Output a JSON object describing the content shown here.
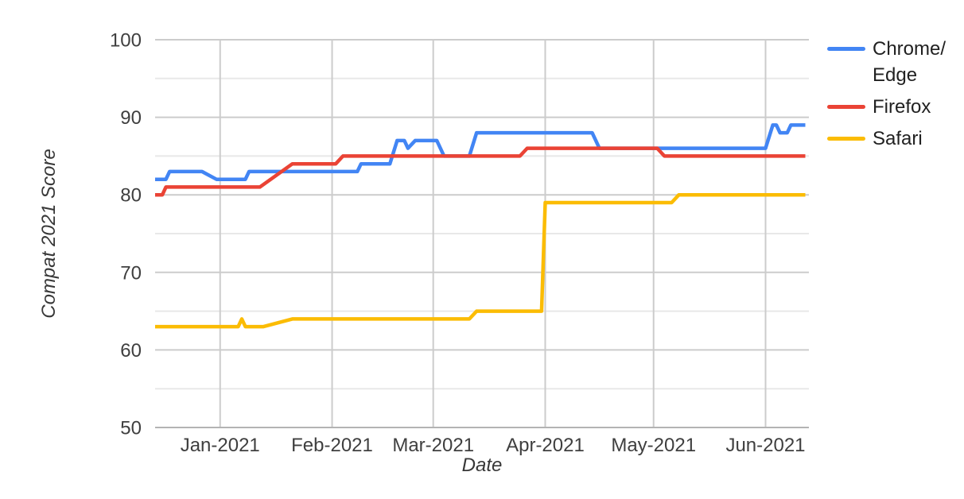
{
  "chart_data": {
    "type": "line",
    "title": "",
    "x_axis": {
      "label": "Date",
      "start": "2020-12-14",
      "end": "2021-06-13",
      "ticks": [
        {
          "date": "2021-01-01",
          "label": "Jan-2021"
        },
        {
          "date": "2021-02-01",
          "label": "Feb-2021"
        },
        {
          "date": "2021-03-01",
          "label": "Mar-2021"
        },
        {
          "date": "2021-04-01",
          "label": "Apr-2021"
        },
        {
          "date": "2021-05-01",
          "label": "May-2021"
        },
        {
          "date": "2021-06-01",
          "label": "Jun-2021"
        }
      ]
    },
    "y_axis": {
      "label": "Compat 2021 Score",
      "min": 50,
      "max": 100,
      "major_ticks": [
        50,
        60,
        70,
        80,
        90,
        100
      ],
      "minor_ticks": [
        55,
        65,
        75,
        85,
        95
      ]
    },
    "grid": true,
    "legend_position": "right",
    "style": {
      "background": "#ffffff",
      "major_grid_color": "#cccccc",
      "minor_grid_color": "#e8e8e8",
      "baseline_color": "#b3b3b3",
      "tick_label_color": "#3f3f3f",
      "axis_title_color": "#383838",
      "legend_text_color": "#212121",
      "line_width": 4.5
    },
    "series": [
      {
        "name": "Chrome/Edge",
        "legend_lines": [
          "Chrome/",
          "Edge"
        ],
        "color": "#4285F4",
        "points": [
          [
            "2020-12-14",
            82
          ],
          [
            "2020-12-17",
            82
          ],
          [
            "2020-12-18",
            83
          ],
          [
            "2020-12-27",
            83
          ],
          [
            "2020-12-31",
            82
          ],
          [
            "2021-01-08",
            82
          ],
          [
            "2021-01-09",
            83
          ],
          [
            "2021-02-08",
            83
          ],
          [
            "2021-02-09",
            84
          ],
          [
            "2021-02-17",
            84
          ],
          [
            "2021-02-19",
            87
          ],
          [
            "2021-02-21",
            87
          ],
          [
            "2021-02-22",
            86
          ],
          [
            "2021-02-24",
            87
          ],
          [
            "2021-03-02",
            87
          ],
          [
            "2021-03-04",
            85
          ],
          [
            "2021-03-11",
            85
          ],
          [
            "2021-03-13",
            88
          ],
          [
            "2021-04-14",
            88
          ],
          [
            "2021-04-16",
            86
          ],
          [
            "2021-06-01",
            86
          ],
          [
            "2021-06-03",
            89
          ],
          [
            "2021-06-04",
            89
          ],
          [
            "2021-06-05",
            88
          ],
          [
            "2021-06-07",
            88
          ],
          [
            "2021-06-08",
            89
          ],
          [
            "2021-06-12",
            89
          ]
        ]
      },
      {
        "name": "Firefox",
        "legend_lines": [
          "Firefox"
        ],
        "color": "#EA4335",
        "points": [
          [
            "2020-12-14",
            80
          ],
          [
            "2020-12-16",
            80
          ],
          [
            "2020-12-17",
            81
          ],
          [
            "2021-01-12",
            81
          ],
          [
            "2021-01-21",
            84
          ],
          [
            "2021-02-02",
            84
          ],
          [
            "2021-02-04",
            85
          ],
          [
            "2021-03-25",
            85
          ],
          [
            "2021-03-27",
            86
          ],
          [
            "2021-05-02",
            86
          ],
          [
            "2021-05-04",
            85
          ],
          [
            "2021-06-12",
            85
          ]
        ]
      },
      {
        "name": "Safari",
        "legend_lines": [
          "Safari"
        ],
        "color": "#FBBC04",
        "points": [
          [
            "2020-12-14",
            63
          ],
          [
            "2021-01-06",
            63
          ],
          [
            "2021-01-07",
            64
          ],
          [
            "2021-01-08",
            63
          ],
          [
            "2021-01-13",
            63
          ],
          [
            "2021-01-21",
            64
          ],
          [
            "2021-03-11",
            64
          ],
          [
            "2021-03-13",
            65
          ],
          [
            "2021-03-31",
            65
          ],
          [
            "2021-04-01",
            79
          ],
          [
            "2021-05-06",
            79
          ],
          [
            "2021-05-08",
            80
          ],
          [
            "2021-06-12",
            80
          ]
        ]
      }
    ]
  }
}
